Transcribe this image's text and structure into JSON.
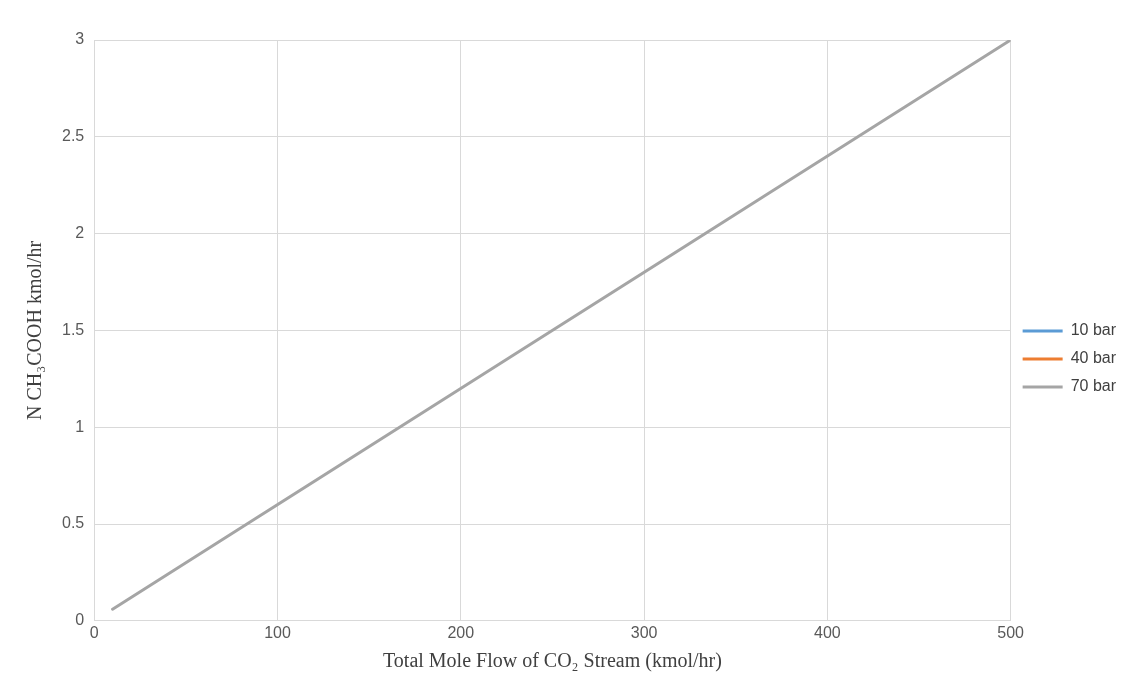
{
  "chart_data": {
    "type": "line",
    "xlabel": "Total Mole Flow of CO₂ Stream (kmol/hr)",
    "ylabel": "N CH₃COOH kmol/hr",
    "x": [
      10,
      500
    ],
    "series": [
      {
        "name": "10 bar",
        "color": "#5b9bd5",
        "values": [
          null,
          null
        ]
      },
      {
        "name": "40 bar",
        "color": "#ed7d31",
        "values": [
          null,
          null
        ]
      },
      {
        "name": "70 bar",
        "color": "#a5a5a5",
        "values": [
          0.06,
          3
        ]
      }
    ],
    "xlim": [
      0,
      500
    ],
    "xticks": [
      0,
      100,
      200,
      300,
      400,
      500
    ],
    "ylim": [
      0,
      3
    ],
    "yticks": [
      0,
      0.5,
      1,
      1.5,
      2,
      2.5,
      3
    ],
    "grid": true,
    "legend": "right",
    "marker": "none",
    "line_style": "solid"
  }
}
